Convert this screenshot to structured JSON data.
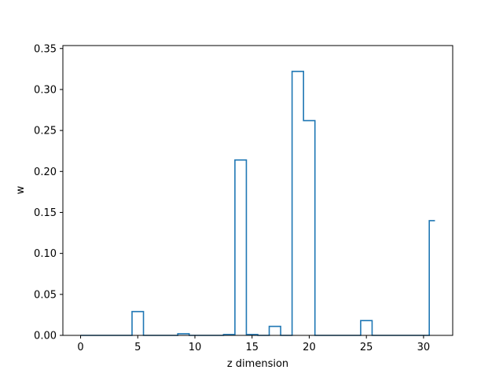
{
  "chart_data": {
    "type": "line",
    "drawstyle": "steps-mid",
    "title": "",
    "xlabel": "z dimension",
    "ylabel": "w",
    "xlim": [
      -1.55,
      32.55
    ],
    "ylim": [
      0,
      0.3536
    ],
    "xticks": [
      0,
      5,
      10,
      15,
      20,
      25,
      30
    ],
    "yticks": [
      0.0,
      0.05,
      0.1,
      0.15,
      0.2,
      0.25,
      0.3,
      0.35
    ],
    "grid": false,
    "legend": "none",
    "series": [
      {
        "color": "#1f77b4",
        "x": [
          0,
          1,
          2,
          3,
          4,
          5,
          6,
          7,
          8,
          9,
          10,
          11,
          12,
          13,
          14,
          15,
          16,
          17,
          18,
          19,
          20,
          21,
          22,
          23,
          24,
          25,
          26,
          27,
          28,
          29,
          30,
          31
        ],
        "y": [
          0,
          0,
          0,
          0,
          0,
          0.029,
          0,
          0,
          0,
          0.002,
          0,
          0,
          0,
          0.001,
          0.214,
          0.001,
          0,
          0.011,
          0,
          0.322,
          0.262,
          0,
          0,
          0,
          0,
          0.018,
          0,
          0,
          0,
          0,
          0,
          0.14
        ]
      }
    ]
  }
}
